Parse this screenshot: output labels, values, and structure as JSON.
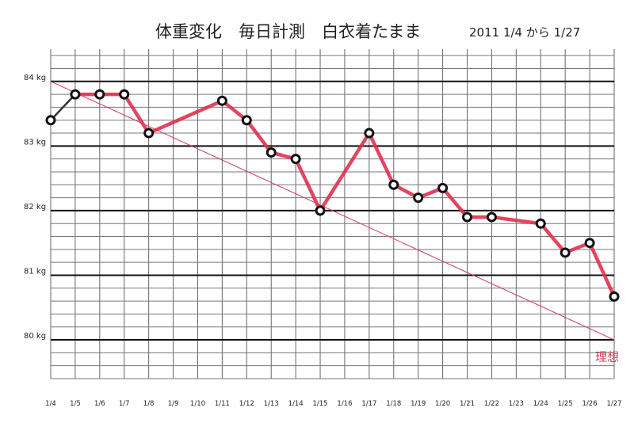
{
  "chart_data": {
    "type": "line",
    "title": "体重変化　毎日計測　白衣着たまま",
    "subtitle": "2011 1/4 から 1/27",
    "xlabel": "",
    "ylabel": "",
    "ylim": [
      79.4,
      84.5
    ],
    "y_ticks": [
      84,
      83,
      82,
      81,
      80
    ],
    "y_tick_labels": [
      "84 kg",
      "83 kg",
      "82 kg",
      "81 kg",
      "80 kg"
    ],
    "categories": [
      "1/4",
      "1/5",
      "1/6",
      "1/7",
      "1/8",
      "1/9",
      "1/10",
      "1/11",
      "1/12",
      "1/13",
      "1/14",
      "1/15",
      "1/16",
      "1/17",
      "1/18",
      "1/19",
      "1/20",
      "1/21",
      "1/22",
      "1/23",
      "1/24",
      "1/25",
      "1/26",
      "1/27"
    ],
    "grid": true,
    "series": [
      {
        "name": "",
        "color": "#e0304f",
        "values": [
          83.4,
          83.8,
          83.8,
          83.8,
          83.2,
          null,
          null,
          83.7,
          83.4,
          82.9,
          82.8,
          82.0,
          null,
          83.2,
          82.4,
          82.2,
          82.35,
          81.9,
          81.9,
          null,
          81.8,
          81.35,
          81.5,
          80.67
        ]
      },
      {
        "name": "理想",
        "color": "#d23a5a",
        "values": [
          84.0,
          null,
          null,
          null,
          null,
          null,
          null,
          null,
          null,
          null,
          null,
          null,
          null,
          null,
          null,
          null,
          null,
          null,
          null,
          null,
          null,
          null,
          null,
          80.0
        ]
      }
    ],
    "annotations": [
      {
        "text": "理想",
        "x": "1/27",
        "y": 79.8,
        "color": "#d23a5a"
      }
    ]
  }
}
